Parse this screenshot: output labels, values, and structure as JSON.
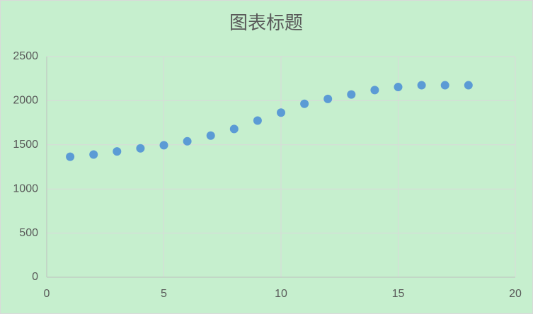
{
  "chart_data": {
    "type": "scatter",
    "title": "图表标题",
    "x": [
      1,
      2,
      3,
      4,
      5,
      6,
      7,
      8,
      9,
      10,
      11,
      12,
      13,
      14,
      15,
      16,
      17,
      18
    ],
    "series": [
      {
        "color": "#5b9bd5",
        "values": [
          1365,
          1390,
          1425,
          1460,
          1495,
          1540,
          1605,
          1680,
          1775,
          1865,
          1965,
          2020,
          2070,
          2120,
          2155,
          2175,
          2175,
          2175
        ]
      }
    ],
    "xlim": [
      0,
      20
    ],
    "xticks": [
      0,
      5,
      10,
      15,
      20
    ],
    "ylim": [
      0,
      2500
    ],
    "yticks": [
      0,
      500,
      1000,
      1500,
      2000,
      2500
    ],
    "grid": true
  }
}
